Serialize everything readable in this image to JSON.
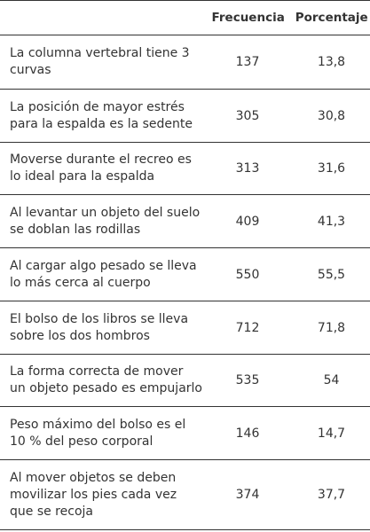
{
  "table": {
    "headers": {
      "statement": "",
      "frequency": "Frecuencia",
      "percentage": "Porcentaje"
    },
    "rows": [
      {
        "statement": "La columna vertebral tiene 3 curvas",
        "frequency": "137",
        "percentage": "13,8"
      },
      {
        "statement": "La posición de mayor estrés para la espalda es la sedente",
        "frequency": "305",
        "percentage": "30,8"
      },
      {
        "statement": "Moverse durante el recreo es lo ideal para la espalda",
        "frequency": "313",
        "percentage": "31,6"
      },
      {
        "statement": "Al levantar un objeto del suelo se doblan las rodillas",
        "frequency": "409",
        "percentage": "41,3"
      },
      {
        "statement": "Al cargar algo pesado se lleva lo más cerca al cuerpo",
        "frequency": "550",
        "percentage": "55,5"
      },
      {
        "statement": "El bolso de los libros se lleva sobre los dos hombros",
        "frequency": "712",
        "percentage": "71,8"
      },
      {
        "statement": "La forma correcta de mover un objeto pesado es empujarlo",
        "frequency": "535",
        "percentage": "54"
      },
      {
        "statement": "Peso máximo del bolso es el 10 % del peso corporal",
        "frequency": "146",
        "percentage": "14,7"
      },
      {
        "statement": "Al mover objetos se deben movilizar los pies cada vez que se recoja",
        "frequency": "374",
        "percentage": "37,7"
      }
    ]
  }
}
